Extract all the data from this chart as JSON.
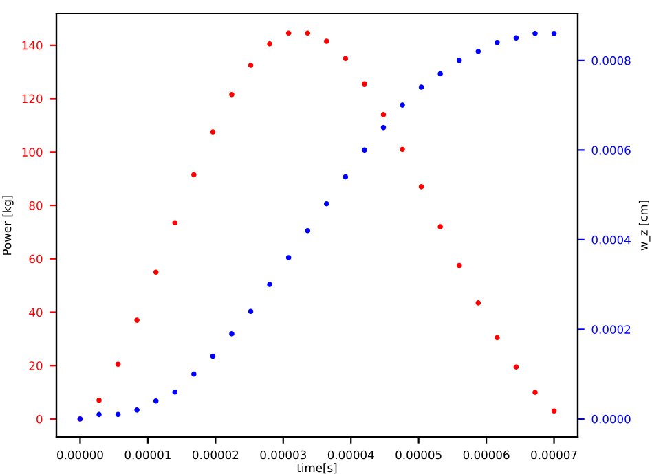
{
  "chart_data": {
    "type": "scatter",
    "xlabel": "time[s]",
    "ylabel": "Power [kg]",
    "y2label": "w_z [cm]",
    "x": [
      0,
      2.8e-06,
      5.6e-06,
      8.4e-06,
      1.12e-05,
      1.4e-05,
      1.68e-05,
      1.96e-05,
      2.24e-05,
      2.52e-05,
      2.8e-05,
      3.08e-05,
      3.36e-05,
      3.64e-05,
      3.92e-05,
      4.2e-05,
      4.48e-05,
      4.76e-05,
      5.04e-05,
      5.32e-05,
      5.6e-05,
      5.88e-05,
      6.16e-05,
      6.44e-05,
      6.72e-05,
      7e-05
    ],
    "series": [
      {
        "color": "#ff0000",
        "values": [
          0,
          7,
          20.5,
          37,
          55,
          73.5,
          91.5,
          107.5,
          121.5,
          132.5,
          140.5,
          144.5,
          144.5,
          141.5,
          135,
          125.5,
          114,
          101,
          87,
          72,
          57.5,
          43.5,
          30.5,
          19.5,
          10,
          3
        ]
      },
      {
        "color": "#0000ff",
        "axis": "y2",
        "values": [
          0,
          1e-05,
          1e-05,
          2e-05,
          4e-05,
          6e-05,
          0.0001,
          0.00014,
          0.00019,
          0.00024,
          0.0003,
          0.00036,
          0.00042,
          0.00048,
          0.00054,
          0.0006,
          0.00065,
          0.0007,
          0.00074,
          0.00077,
          0.0008,
          0.00082,
          0.00084,
          0.00085,
          0.00086,
          0.00086
        ]
      }
    ],
    "xlim": [
      -3.5e-06,
      7.35e-05
    ],
    "xticks": [
      {
        "value": 0,
        "label": "0.00000"
      },
      {
        "value": 1e-05,
        "label": "0.00001"
      },
      {
        "value": 2e-05,
        "label": "0.00002"
      },
      {
        "value": 3e-05,
        "label": "0.00003"
      },
      {
        "value": 4e-05,
        "label": "0.00004"
      },
      {
        "value": 5e-05,
        "label": "0.00005"
      },
      {
        "value": 6e-05,
        "label": "0.00006"
      },
      {
        "value": 7e-05,
        "label": "0.00007"
      }
    ],
    "ylim": [
      -6.7,
      151.8
    ],
    "yticks": [
      0,
      20,
      40,
      60,
      80,
      100,
      120,
      140
    ],
    "y2lim": [
      -4e-05,
      0.000904
    ],
    "y2ticks": [
      {
        "value": 0,
        "label": "0.0000"
      },
      {
        "value": 0.0002,
        "label": "0.0002"
      },
      {
        "value": 0.0004,
        "label": "0.0004"
      },
      {
        "value": 0.0006,
        "label": "0.0006"
      },
      {
        "value": 0.0008,
        "label": "0.0008"
      }
    ],
    "marker": "circle",
    "grid": false,
    "legend": false
  }
}
